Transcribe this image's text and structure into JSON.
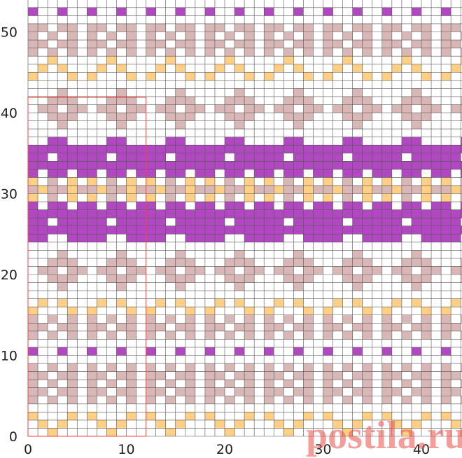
{
  "pattern": {
    "palette": {
      ".": "#ffffff",
      "y": "#ffcf85",
      "p": "#d9b7b7",
      "m": "#b048c0"
    },
    "rows": [
      "..y...",
      ".y.y..",
      "y...y.",
      "......",
      "p.p.p.",
      "pp.pp.",
      "p.p.p.",
      "pp.pp.",
      "p.p.p.",
      "......",
      "m..m..",
      "......",
      "p.p.p.",
      "pp.pp.",
      "p.p.p.",
      "y...y.",
      ".y.y..",
      "......",
      "...p..",
      "..ppp.",
      ".pp.pp",
      "..ppp.",
      "...p..",
      "......",
      "mm..mm",
      "mmmmmm",
      "mm.mmm",
      "mmmmmm",
      "m.mm.m",
      "y.p.y.",
      "pyppyp",
      "y.p.y.",
      "m.mm.m",
      "mmmmmm",
      "mm.mmm",
      "mmmmmm",
      "..mm..",
      "......",
      "...p..",
      "..ppp.",
      ".pp.pp",
      "..ppp.",
      "...p..",
      "......",
      "y...y.",
      ".y.y..",
      "..y...",
      "p.p.p.",
      "pp.pp.",
      "p.p.p.",
      "pp.pp.",
      "......",
      "m..m..",
      "......"
    ]
  },
  "x_axis": {
    "ticks": [
      0,
      10,
      20,
      30,
      40
    ]
  },
  "y_axis": {
    "ticks": [
      0,
      10,
      20,
      30,
      40,
      50
    ]
  },
  "watermark": "postila.ru"
}
